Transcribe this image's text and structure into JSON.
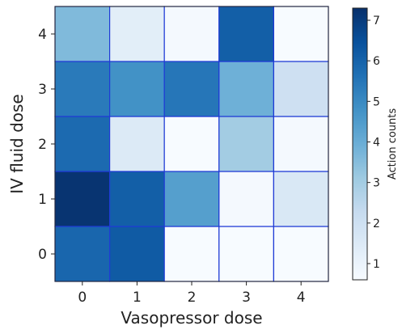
{
  "chart_data": {
    "type": "heatmap",
    "xlabel": "Vasopressor dose",
    "ylabel": "IV fluid dose",
    "x_categories": [
      "0",
      "1",
      "2",
      "3",
      "4"
    ],
    "y_categories": [
      "0",
      "1",
      "2",
      "3",
      "4"
    ],
    "values": [
      [
        5.9,
        6.2,
        0.6,
        0.6,
        0.6
      ],
      [
        7.2,
        6.1,
        4.4,
        0.7,
        1.6
      ],
      [
        5.8,
        1.5,
        0.6,
        3.0,
        0.7
      ],
      [
        5.4,
        4.8,
        5.5,
        3.9,
        2.0
      ],
      [
        3.6,
        1.3,
        0.7,
        6.1,
        0.6
      ]
    ],
    "colorbar": {
      "label": "Action counts",
      "range": [
        0.6,
        7.3
      ],
      "ticks": [
        "1",
        "2",
        "3",
        "4",
        "5",
        "6",
        "7"
      ],
      "colormap": "Blues"
    },
    "cell_border_color": "#1f3bd6"
  }
}
